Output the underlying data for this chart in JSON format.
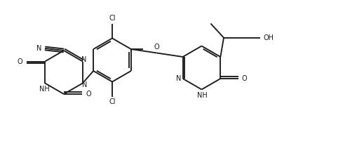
{
  "bg_color": "#ffffff",
  "line_color": "#1a1a1a",
  "lw": 1.35,
  "fs": 7.0,
  "xlim": [
    0,
    10.2
  ],
  "ylim": [
    0,
    4.16
  ],
  "figsize": [
    5.1,
    2.08
  ],
  "dpi": 100
}
